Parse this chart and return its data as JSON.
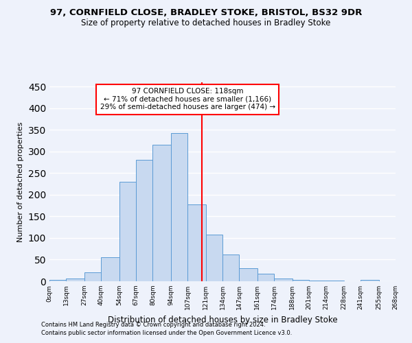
{
  "title1": "97, CORNFIELD CLOSE, BRADLEY STOKE, BRISTOL, BS32 9DR",
  "title2": "Size of property relative to detached houses in Bradley Stoke",
  "xlabel": "Distribution of detached houses by size in Bradley Stoke",
  "ylabel": "Number of detached properties",
  "footnote1": "Contains HM Land Registry data © Crown copyright and database right 2024.",
  "footnote2": "Contains public sector information licensed under the Open Government Licence v3.0.",
  "bin_edges": [
    0,
    13,
    27,
    40,
    54,
    67,
    80,
    94,
    107,
    121,
    134,
    147,
    161,
    174,
    188,
    201,
    214,
    228,
    241,
    255,
    268
  ],
  "bar_heights": [
    3,
    7,
    20,
    55,
    230,
    280,
    315,
    343,
    177,
    108,
    62,
    30,
    17,
    7,
    3,
    2,
    1,
    0,
    3,
    0
  ],
  "bar_color": "#c8d9f0",
  "bar_edge_color": "#5b9bd5",
  "vline_x": 118,
  "vline_color": "red",
  "annotation_title": "97 CORNFIELD CLOSE: 118sqm",
  "annotation_line1": "← 71% of detached houses are smaller (1,166)",
  "annotation_line2": "29% of semi-detached houses are larger (474) →",
  "annotation_box_color": "white",
  "annotation_box_edgecolor": "red",
  "background_color": "#eef2fb",
  "grid_color": "white",
  "ylim": [
    0,
    460
  ],
  "xlim": [
    0,
    268
  ],
  "tick_labels": [
    "0sqm",
    "13sqm",
    "27sqm",
    "40sqm",
    "54sqm",
    "67sqm",
    "80sqm",
    "94sqm",
    "107sqm",
    "121sqm",
    "134sqm",
    "147sqm",
    "161sqm",
    "174sqm",
    "188sqm",
    "201sqm",
    "214sqm",
    "228sqm",
    "241sqm",
    "255sqm",
    "268sqm"
  ],
  "yticks": [
    0,
    50,
    100,
    150,
    200,
    250,
    300,
    350,
    400,
    450
  ]
}
